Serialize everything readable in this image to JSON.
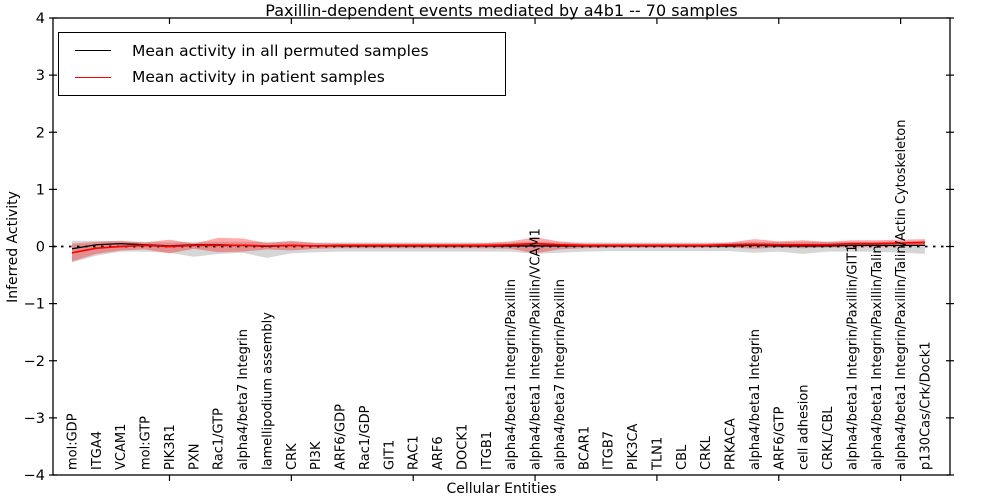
{
  "title": "Paxillin-dependent events mediated by a4b1 -- 70 samples",
  "axes": {
    "xlabel": "Cellular Entities",
    "ylabel": "Inferred Activity"
  },
  "legend": {
    "items": [
      {
        "label": "Mean activity in all permuted samples",
        "color": "#000000"
      },
      {
        "label": "Mean activity in patient samples",
        "color": "#ff0000"
      }
    ]
  },
  "chart_data": {
    "type": "line",
    "title": "Paxillin-dependent events mediated by a4b1 -- 70 samples",
    "xlabel": "Cellular Entities",
    "ylabel": "Inferred Activity",
    "ylim": [
      -4,
      4
    ],
    "yticks": [
      -4,
      -3,
      -2,
      -1,
      0,
      1,
      2,
      3,
      4
    ],
    "xticks_numeric": [
      5,
      10,
      15,
      20,
      25,
      30,
      35
    ],
    "grid": false,
    "legend_position": "upper left",
    "zero_line": {
      "style": "dotted",
      "color": "#000000",
      "y": 0
    },
    "categories": [
      "mol:GDP",
      "ITGA4",
      "VCAM1",
      "mol:GTP",
      "PIK3R1",
      "PXN",
      "Rac1/GTP",
      "alpha4/beta7 Integrin",
      "lamellipodium assembly",
      "CRK",
      "PI3K",
      "ARF6/GDP",
      "Rac1/GDP",
      "GIT1",
      "RAC1",
      "ARF6",
      "DOCK1",
      "ITGB1",
      "alpha4/beta1 Integrin/Paxillin",
      "alpha4/beta1 Integrin/Paxillin/VCAM1",
      "alpha4/beta7 Integrin/Paxillin",
      "BCAR1",
      "ITGB7",
      "PIK3CA",
      "TLN1",
      "CBL",
      "CRKL",
      "PRKACA",
      "alpha4/beta1 Integrin",
      "ARF6/GTP",
      "cell adhesion",
      "CRKL/CBL",
      "alpha4/beta1 Integrin/Paxillin/GIT1",
      "alpha4/beta1 Integrin/Paxillin/Talin",
      "alpha4/beta1 Integrin/Paxillin/Talin/Actin Cytoskeleton",
      "p130Cas/Crk/Dock1"
    ],
    "series": [
      {
        "name": "Mean activity in all permuted samples",
        "color": "#000000",
        "width": 1.3,
        "values": [
          -0.04,
          0.03,
          0.05,
          0.03,
          0.01,
          0.03,
          0.03,
          0.02,
          0.0,
          0.02,
          0.01,
          0.01,
          0.01,
          0.01,
          0.01,
          0.01,
          0.01,
          0.01,
          0.01,
          0.01,
          0.01,
          0.01,
          0.01,
          0.01,
          0.01,
          0.01,
          0.01,
          0.01,
          0.02,
          0.01,
          0.01,
          0.01,
          0.02,
          0.02,
          0.02,
          0.02
        ]
      },
      {
        "name": "Mean activity in patient samples",
        "color": "#ff0000",
        "width": 1.7,
        "values": [
          -0.11,
          -0.03,
          0.0,
          0.02,
          0.0,
          0.02,
          0.02,
          0.02,
          0.01,
          0.02,
          0.01,
          0.02,
          0.02,
          0.02,
          0.02,
          0.02,
          0.02,
          0.02,
          0.03,
          0.05,
          0.03,
          0.02,
          0.02,
          0.02,
          0.02,
          0.02,
          0.02,
          0.03,
          0.04,
          0.03,
          0.03,
          0.03,
          0.05,
          0.05,
          0.06,
          0.07
        ]
      }
    ],
    "bands": [
      {
        "name": "permuted samples range",
        "color": "rgba(128,128,128,0.32)",
        "upper": [
          0.1,
          0.1,
          0.09,
          0.08,
          0.07,
          0.08,
          0.08,
          0.08,
          0.08,
          0.08,
          0.07,
          0.07,
          0.07,
          0.07,
          0.07,
          0.07,
          0.07,
          0.07,
          0.07,
          0.08,
          0.07,
          0.07,
          0.07,
          0.07,
          0.07,
          0.07,
          0.07,
          0.07,
          0.08,
          0.08,
          0.08,
          0.08,
          0.08,
          0.08,
          0.09,
          0.1
        ],
        "lower": [
          -0.28,
          -0.16,
          -0.09,
          -0.09,
          -0.11,
          -0.18,
          -0.13,
          -0.11,
          -0.2,
          -0.12,
          -0.1,
          -0.09,
          -0.09,
          -0.09,
          -0.09,
          -0.09,
          -0.09,
          -0.09,
          -0.09,
          -0.13,
          -0.11,
          -0.09,
          -0.08,
          -0.08,
          -0.08,
          -0.08,
          -0.08,
          -0.08,
          -0.11,
          -0.09,
          -0.13,
          -0.09,
          -0.09,
          -0.09,
          -0.11,
          -0.13
        ]
      },
      {
        "name": "patient samples range",
        "color": "rgba(255,0,0,0.33)",
        "upper": [
          0.05,
          0.08,
          0.1,
          0.07,
          0.12,
          0.05,
          0.15,
          0.14,
          0.06,
          0.1,
          0.06,
          0.05,
          0.05,
          0.05,
          0.05,
          0.05,
          0.05,
          0.06,
          0.09,
          0.16,
          0.09,
          0.05,
          0.05,
          0.05,
          0.05,
          0.05,
          0.05,
          0.07,
          0.13,
          0.09,
          0.11,
          0.08,
          0.11,
          0.11,
          0.12,
          0.13
        ],
        "lower": [
          -0.26,
          -0.13,
          -0.07,
          -0.05,
          -0.12,
          -0.04,
          -0.1,
          -0.09,
          -0.05,
          -0.07,
          -0.04,
          -0.03,
          -0.03,
          -0.03,
          -0.03,
          -0.03,
          -0.03,
          -0.03,
          -0.04,
          -0.12,
          -0.05,
          -0.03,
          -0.02,
          -0.02,
          -0.02,
          -0.02,
          -0.02,
          -0.02,
          -0.04,
          -0.02,
          -0.03,
          -0.02,
          -0.01,
          -0.01,
          0.0,
          0.01
        ]
      }
    ]
  }
}
